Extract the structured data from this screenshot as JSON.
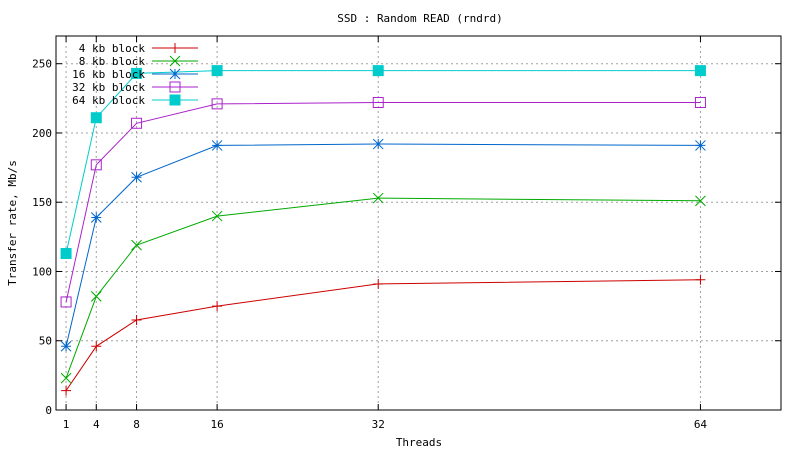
{
  "chart_data": {
    "type": "line",
    "title": "SSD : Random READ (rndrd)",
    "xlabel": "Threads",
    "ylabel": "Transfer rate, Mb/s",
    "xlim": [
      0,
      72
    ],
    "ylim": [
      0,
      270
    ],
    "xticks": [
      1,
      4,
      8,
      16,
      32,
      64
    ],
    "yticks": [
      0,
      50,
      100,
      150,
      200,
      250
    ],
    "grid": true,
    "legend_position": "top-left",
    "x": [
      1,
      4,
      8,
      16,
      32,
      64
    ],
    "series": [
      {
        "name": "4 kb block",
        "color": "#cc0000",
        "marker": "plus",
        "values": [
          14,
          46,
          65,
          75,
          91,
          94
        ]
      },
      {
        "name": "8 kb block",
        "color": "#00aa00",
        "marker": "cross",
        "values": [
          23,
          82,
          119,
          140,
          153,
          151
        ]
      },
      {
        "name": "16 kb block",
        "color": "#0066cc",
        "marker": "star",
        "values": [
          46,
          139,
          168,
          191,
          192,
          191
        ]
      },
      {
        "name": "32 kb block",
        "color": "#aa22cc",
        "marker": "open-square",
        "values": [
          78,
          177,
          207,
          221,
          222,
          222
        ]
      },
      {
        "name": "64 kb block",
        "color": "#00cccc",
        "marker": "filled-square",
        "values": [
          113,
          211,
          243,
          245,
          245,
          245
        ]
      }
    ]
  }
}
